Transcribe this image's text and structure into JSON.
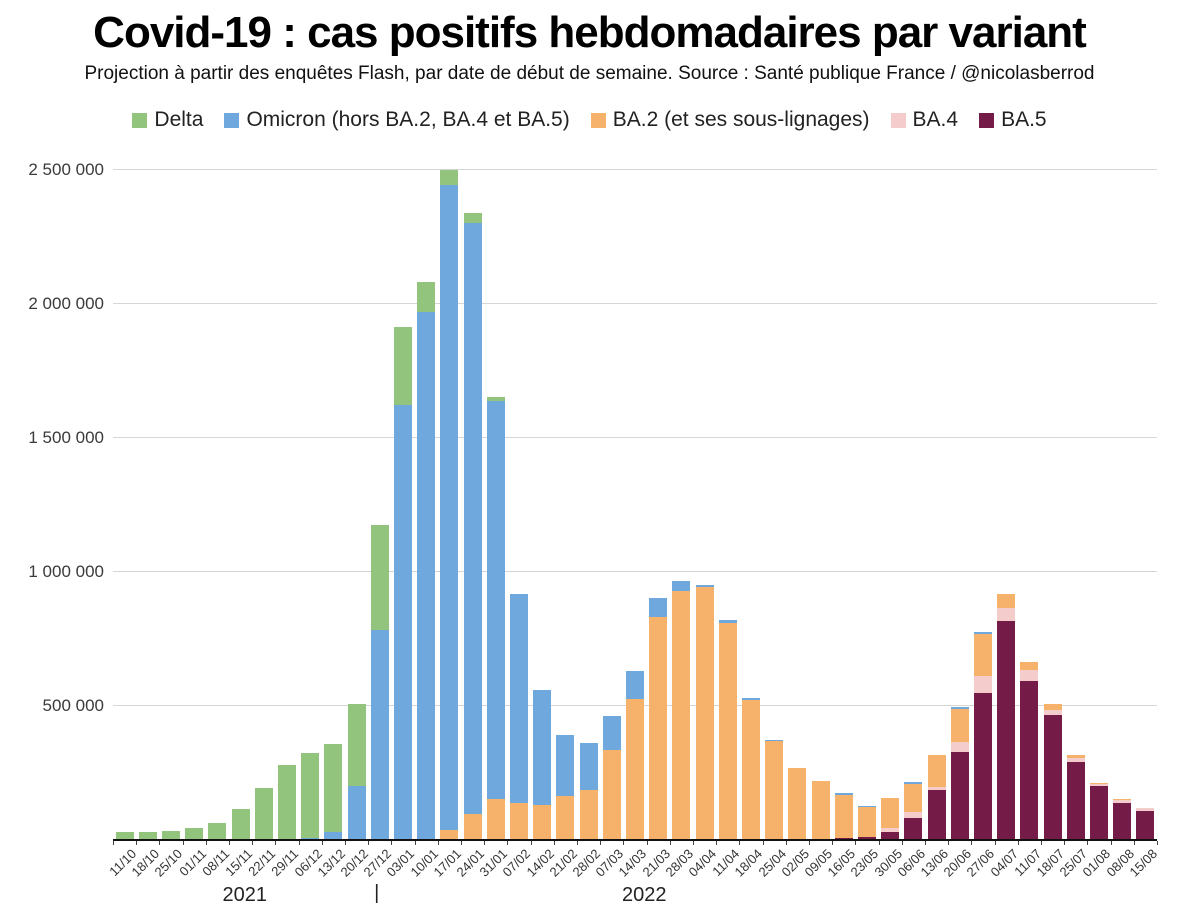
{
  "title": "Covid-19 : cas positifs hebdomadaires par variant",
  "subtitle": "Projection à partir des enquêtes Flash, par date de début de semaine. Source : Santé publique France / @nicolasberrod",
  "chart_data": {
    "type": "bar",
    "stacked": true,
    "title": "Covid-19 : cas positifs hebdomadaires par variant",
    "xlabel": "",
    "ylabel": "",
    "ylim": [
      0,
      2500000
    ],
    "grid": true,
    "legend_position": "top",
    "y_ticks": [
      {
        "label": "500 000",
        "value": 500000
      },
      {
        "label": "1 000 000",
        "value": 1000000
      },
      {
        "label": "1 500 000",
        "value": 1500000
      },
      {
        "label": "2 000 000",
        "value": 2000000
      },
      {
        "label": "2 500 000",
        "value": 2500000
      }
    ],
    "categories": [
      "11/10",
      "18/10",
      "25/10",
      "01/11",
      "08/11",
      "15/11",
      "22/11",
      "29/11",
      "06/12",
      "13/12",
      "20/12",
      "27/12",
      "03/01",
      "10/01",
      "17/01",
      "24/01",
      "31/01",
      "07/02",
      "14/02",
      "21/02",
      "28/02",
      "07/03",
      "14/03",
      "21/03",
      "28/03",
      "04/04",
      "11/04",
      "18/04",
      "25/04",
      "02/05",
      "09/05",
      "16/05",
      "23/05",
      "30/05",
      "06/06",
      "13/06",
      "20/06",
      "27/06",
      "04/07",
      "11/07",
      "18/07",
      "25/07",
      "01/08",
      "08/08",
      "15/08"
    ],
    "series": [
      {
        "name": "Delta",
        "color": "#93c47d",
        "values": [
          25000,
          27000,
          30000,
          40000,
          60000,
          112000,
          192000,
          276000,
          317000,
          330000,
          307000,
          390000,
          290000,
          112000,
          56000,
          34000,
          16000,
          0,
          0,
          0,
          0,
          0,
          0,
          0,
          0,
          0,
          0,
          0,
          0,
          0,
          0,
          0,
          0,
          0,
          0,
          0,
          0,
          0,
          0,
          0,
          0,
          0,
          0,
          0,
          0
        ]
      },
      {
        "name": "Omicron (hors BA.2, BA.4 et BA.5)",
        "color": "#6fa8dc",
        "values": [
          0,
          0,
          0,
          0,
          0,
          0,
          0,
          0,
          5000,
          25000,
          196000,
          780000,
          1620000,
          1968000,
          2405000,
          2205000,
          1484000,
          780000,
          428000,
          228000,
          177000,
          125000,
          103000,
          71000,
          37000,
          8000,
          12000,
          6000,
          4000,
          0,
          0,
          4000,
          3000,
          0,
          6000,
          0,
          8000,
          10000,
          0,
          0,
          0,
          0,
          0,
          0,
          0
        ]
      },
      {
        "name": "BA.2 (et ses sous-lignages)",
        "color": "#f6b26b",
        "values": [
          0,
          0,
          0,
          0,
          0,
          0,
          0,
          0,
          0,
          0,
          0,
          0,
          0,
          0,
          35000,
          95000,
          150000,
          135000,
          127000,
          160000,
          182000,
          333000,
          524000,
          828000,
          926000,
          940000,
          805000,
          520000,
          364000,
          265000,
          218000,
          162000,
          114000,
          112000,
          107000,
          119000,
          124000,
          155000,
          50000,
          31000,
          23000,
          11000,
          3000,
          5000,
          0
        ]
      },
      {
        "name": "BA.4",
        "color": "#f4cccc",
        "values": [
          0,
          0,
          0,
          0,
          0,
          0,
          0,
          0,
          0,
          0,
          0,
          0,
          0,
          0,
          0,
          0,
          0,
          0,
          0,
          0,
          0,
          0,
          0,
          0,
          0,
          0,
          0,
          0,
          0,
          0,
          0,
          0,
          0,
          15000,
          19000,
          12000,
          38000,
          64000,
          50000,
          41000,
          20000,
          16000,
          10000,
          12000,
          10000
        ]
      },
      {
        "name": "BA.5",
        "color": "#741b47",
        "values": [
          0,
          0,
          0,
          0,
          0,
          0,
          0,
          0,
          0,
          0,
          0,
          0,
          0,
          0,
          0,
          0,
          0,
          0,
          0,
          0,
          0,
          0,
          0,
          0,
          0,
          0,
          0,
          0,
          0,
          0,
          0,
          4000,
          8000,
          25000,
          80000,
          182000,
          323000,
          545000,
          813000,
          590000,
          462000,
          287000,
          196000,
          133000,
          105000
        ]
      }
    ],
    "stack_order_bottom_to_top": [
      "BA.5",
      "BA.4",
      "BA.2 (et ses sous-lignages)",
      "Omicron (hors BA.2, BA.4 et BA.5)",
      "Delta"
    ],
    "x_axis": {
      "years": [
        {
          "label": "2021",
          "col": 5.68
        },
        {
          "label": "2022",
          "col": 22.9
        }
      ],
      "year_divider": {
        "glyph": "|",
        "col": 11.37
      }
    }
  }
}
